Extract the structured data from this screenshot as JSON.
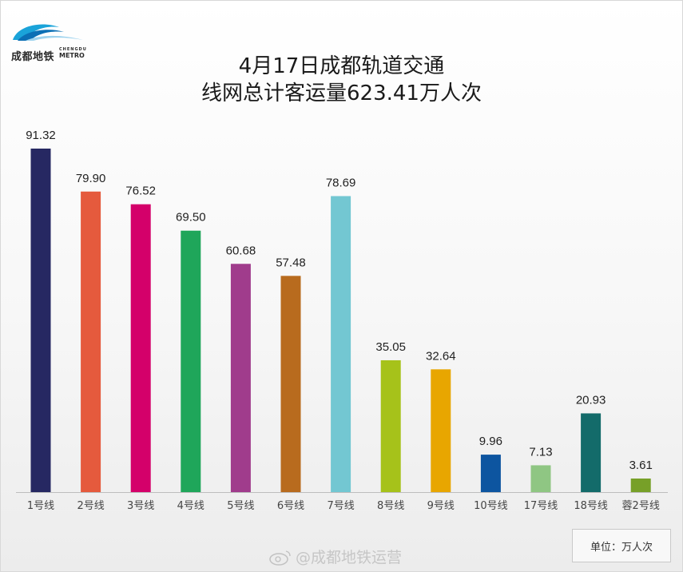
{
  "logo": {
    "text": "成都地铁",
    "en_top": "CHENGDU",
    "en_bottom": "METRO"
  },
  "title": {
    "line1": "4月17日成都轨道交通",
    "line2": "线网总计客运量623.41万人次"
  },
  "unit": "单位：万人次",
  "watermark": "@成都地铁运营",
  "chart_data": {
    "type": "bar",
    "title": "4月17日成都轨道交通 线网总计客运量623.41万人次",
    "categories": [
      "1号线",
      "2号线",
      "3号线",
      "4号线",
      "5号线",
      "6号线",
      "7号线",
      "8号线",
      "9号线",
      "10号线",
      "17号线",
      "18号线",
      "蓉2号线"
    ],
    "values": [
      91.32,
      79.9,
      76.52,
      69.5,
      60.68,
      57.48,
      78.69,
      35.05,
      32.64,
      9.96,
      7.13,
      20.93,
      3.61
    ],
    "labels": [
      "91.32",
      "79.90",
      "76.52",
      "69.50",
      "60.68",
      "57.48",
      "78.69",
      "35.05",
      "32.64",
      "9.96",
      "7.13",
      "20.93",
      "3.61"
    ],
    "colors": [
      "#262862",
      "#e55a3d",
      "#d4006a",
      "#1fa65a",
      "#a03c8c",
      "#b86b1e",
      "#73c7d2",
      "#a6c21a",
      "#e8a600",
      "#0d55a0",
      "#8fc683",
      "#136b6a",
      "#77a028"
    ],
    "ylim": [
      0,
      91.32
    ],
    "grid": false,
    "xlabel": "",
    "ylabel": ""
  }
}
